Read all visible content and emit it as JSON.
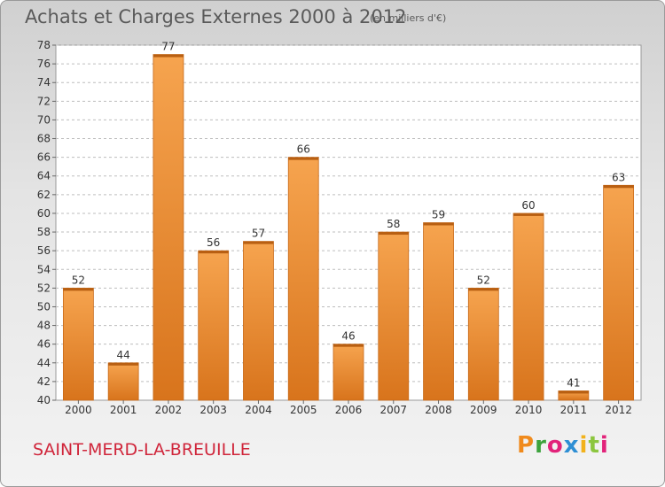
{
  "header": {
    "title": "Achats et Charges Externes 2000 à 2012",
    "unit": "(en milliers d'€)"
  },
  "footer": {
    "city": "SAINT-MERD-LA-BREUILLE",
    "logo_text": "Proxiti",
    "logo_colors": [
      "#f08a1c",
      "#3ca23c",
      "#e2237a",
      "#2e8fd4",
      "#f2b21c",
      "#8cc63f",
      "#e2237a"
    ]
  },
  "colors": {
    "bar_top": "#f6a44f",
    "bar_bottom": "#d8741c",
    "bar_edge": "#c86a1a",
    "grid": "#bdbdbd",
    "axis_text": "#333333"
  },
  "chart_data": {
    "type": "bar",
    "title": "Achats et Charges Externes 2000 à 2012",
    "categories": [
      "2000",
      "2001",
      "2002",
      "2003",
      "2004",
      "2005",
      "2006",
      "2007",
      "2008",
      "2009",
      "2010",
      "2011",
      "2012"
    ],
    "values": [
      52,
      44,
      77,
      56,
      57,
      66,
      46,
      58,
      59,
      52,
      60,
      41,
      63
    ],
    "ylim": [
      40,
      78
    ],
    "yticks": [
      "40",
      "42",
      "44",
      "46",
      "48",
      "50",
      "52",
      "54",
      "56",
      "58",
      "60",
      "62",
      "64",
      "66",
      "68",
      "70",
      "72",
      "74",
      "76",
      "78"
    ],
    "grid": true,
    "legend": false
  }
}
